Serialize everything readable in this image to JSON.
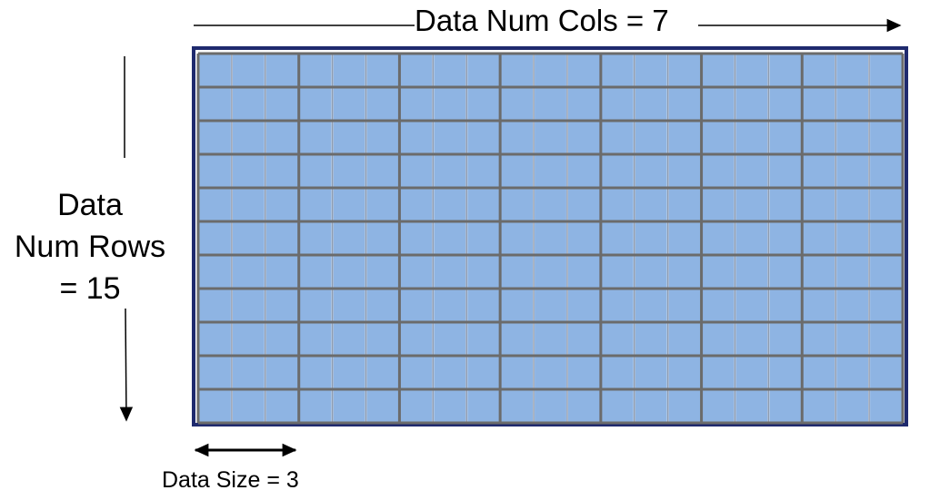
{
  "diagram": {
    "cols_label": "Data Num Cols = 7",
    "rows_label_lines": [
      "Data",
      "Num Rows",
      "= 15"
    ],
    "size_label": "Data Size = 3",
    "num_cols": 7,
    "num_rows": 15,
    "data_size": 3,
    "visible_rows": 11,
    "colors": {
      "cell_fill": "#8eb4e3",
      "fine_line": "#8e9bb0",
      "major_line": "#6b6b6b",
      "frame": "#1f2a6e",
      "arrow": "#000000"
    }
  }
}
